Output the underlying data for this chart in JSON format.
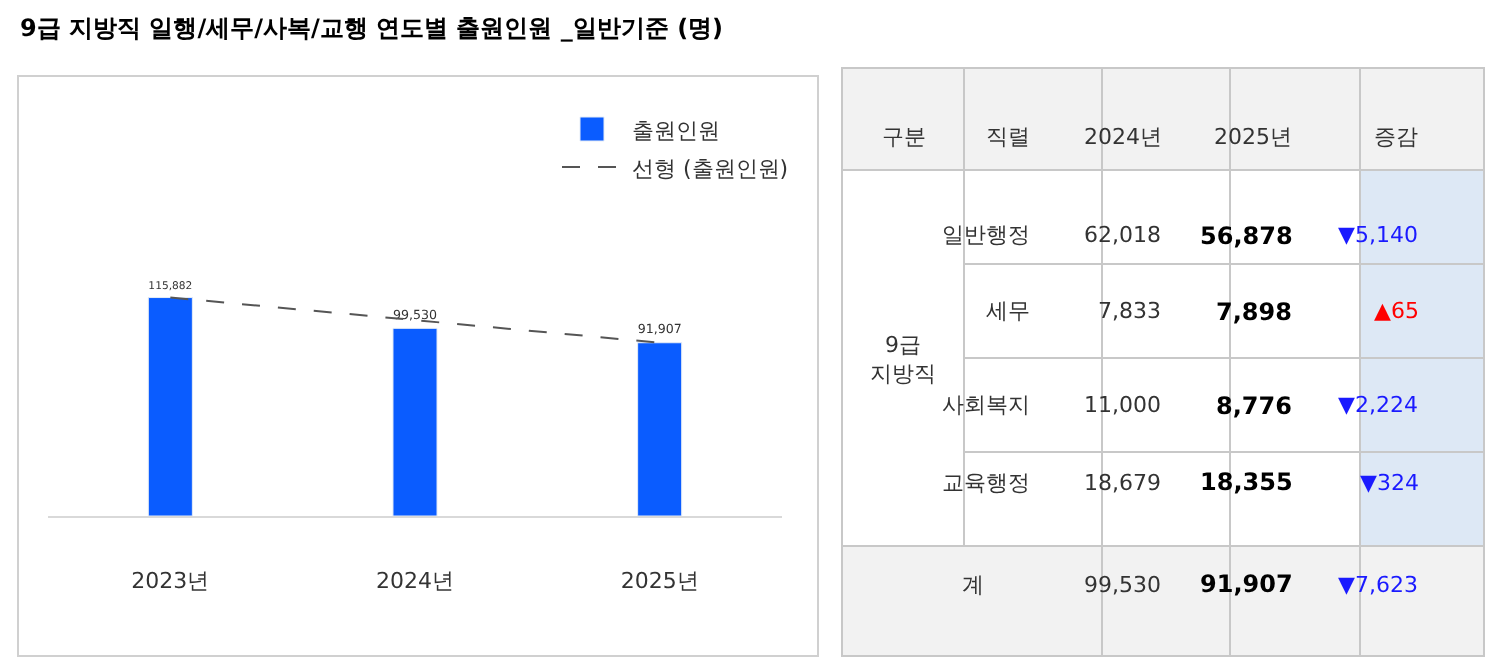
{
  "chart_data": [
    {
      "type": "bar",
      "title": "9급 지방직 일행/세무/사복/교행 연도별 출원인원 _일반기준 (명)",
      "categories": [
        "2023년",
        "2024년",
        "2025년"
      ],
      "series": [
        {
          "name": "출원인원",
          "type": "bar",
          "color": "#0a5cff",
          "values": [
            115882,
            99530,
            91907
          ],
          "value_labels": [
            "115,882",
            "99,530",
            "91,907"
          ]
        },
        {
          "name": "선형 (출원인원)",
          "type": "line",
          "color": "#555555",
          "line_style": "dashed",
          "values": [
            115882,
            103894,
            91907
          ]
        }
      ],
      "legend": "top right"
    },
    {
      "type": "other",
      "annotations": [
        "구분",
        "직렬",
        "2024년",
        "2025년",
        "증감",
        "9급 지방직",
        "일반행정",
        "62,018",
        "56,878",
        "▼5,140",
        "세무",
        "7,833",
        "7,898",
        "▲65",
        "사회복지",
        "11,000",
        "8,776",
        "▼2,224",
        "교육행정",
        "18,679",
        "18,355",
        "▼324",
        "계",
        "99,530",
        "91,907",
        "▼7,623"
      ],
      "colors": [
        "#333333",
        "#333333",
        "#333333",
        "#333333",
        "#333333",
        "#333333",
        "#333333",
        "#333333",
        "#000000",
        "#1a1aff",
        "#333333",
        "#333333",
        "#000000",
        "#ff0000",
        "#333333",
        "#333333",
        "#000000",
        "#1a1aff",
        "#333333",
        "#333333",
        "#000000",
        "#1a1aff",
        "#333333",
        "#333333",
        "#000000",
        "#1a1aff"
      ]
    }
  ]
}
